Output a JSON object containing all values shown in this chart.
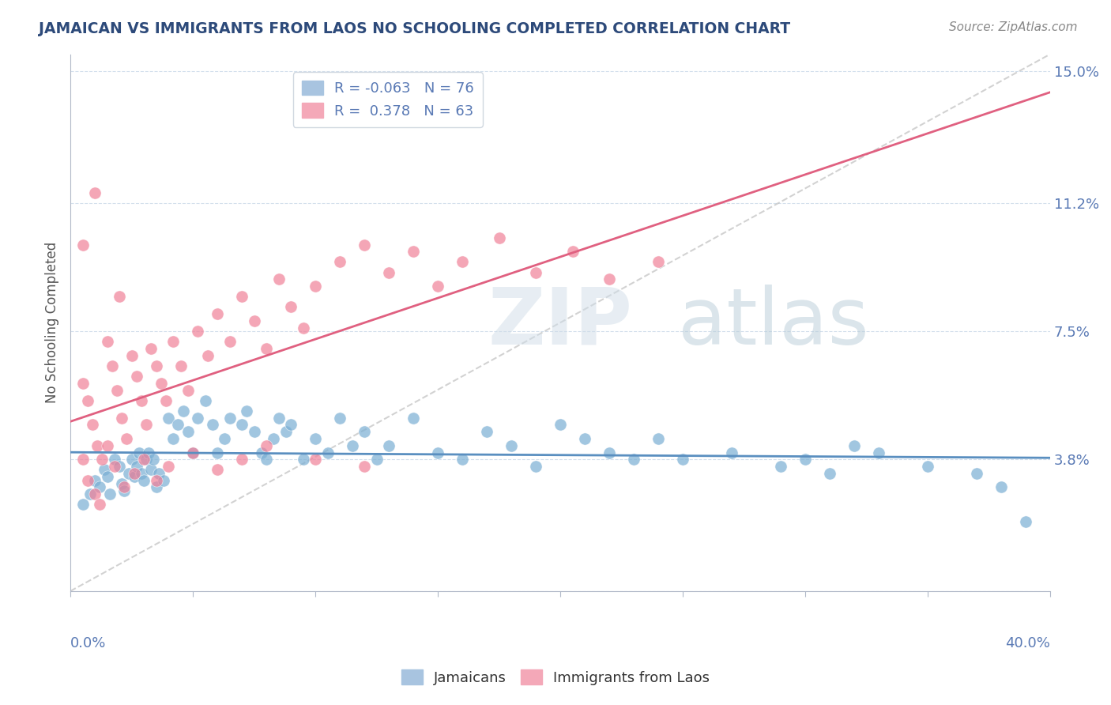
{
  "title": "JAMAICAN VS IMMIGRANTS FROM LAOS NO SCHOOLING COMPLETED CORRELATION CHART",
  "source": "Source: ZipAtlas.com",
  "ylabel": "No Schooling Completed",
  "yticks": [
    0.0,
    0.038,
    0.075,
    0.112,
    0.15
  ],
  "ytick_labels": [
    "",
    "3.8%",
    "7.5%",
    "11.2%",
    "15.0%"
  ],
  "xlim": [
    0.0,
    0.4
  ],
  "ylim": [
    0.0,
    0.155
  ],
  "title_color": "#2d4a7a",
  "axis_color": "#5a7ab5",
  "tick_color": "#5a7ab5",
  "blue_scatter_color": "#7aafd4",
  "pink_scatter_color": "#f08098",
  "blue_line_color": "#5a8fc0",
  "pink_line_color": "#e06080",
  "ref_line_color": "#c0c0c0",
  "background_color": "#ffffff",
  "jamaicans_x": [
    0.005,
    0.008,
    0.01,
    0.012,
    0.014,
    0.015,
    0.016,
    0.018,
    0.02,
    0.021,
    0.022,
    0.024,
    0.025,
    0.026,
    0.027,
    0.028,
    0.029,
    0.03,
    0.031,
    0.032,
    0.033,
    0.034,
    0.035,
    0.036,
    0.038,
    0.04,
    0.042,
    0.044,
    0.046,
    0.048,
    0.05,
    0.052,
    0.055,
    0.058,
    0.06,
    0.063,
    0.065,
    0.07,
    0.072,
    0.075,
    0.078,
    0.08,
    0.083,
    0.085,
    0.088,
    0.09,
    0.095,
    0.1,
    0.105,
    0.11,
    0.115,
    0.12,
    0.125,
    0.13,
    0.14,
    0.15,
    0.16,
    0.17,
    0.18,
    0.19,
    0.2,
    0.21,
    0.22,
    0.23,
    0.24,
    0.25,
    0.27,
    0.29,
    0.3,
    0.31,
    0.32,
    0.33,
    0.35,
    0.37,
    0.38,
    0.39
  ],
  "jamaicans_y": [
    0.025,
    0.028,
    0.032,
    0.03,
    0.035,
    0.033,
    0.028,
    0.038,
    0.036,
    0.031,
    0.029,
    0.034,
    0.038,
    0.033,
    0.036,
    0.04,
    0.034,
    0.032,
    0.038,
    0.04,
    0.035,
    0.038,
    0.03,
    0.034,
    0.032,
    0.05,
    0.044,
    0.048,
    0.052,
    0.046,
    0.04,
    0.05,
    0.055,
    0.048,
    0.04,
    0.044,
    0.05,
    0.048,
    0.052,
    0.046,
    0.04,
    0.038,
    0.044,
    0.05,
    0.046,
    0.048,
    0.038,
    0.044,
    0.04,
    0.05,
    0.042,
    0.046,
    0.038,
    0.042,
    0.05,
    0.04,
    0.038,
    0.046,
    0.042,
    0.036,
    0.048,
    0.044,
    0.04,
    0.038,
    0.044,
    0.038,
    0.04,
    0.036,
    0.038,
    0.034,
    0.042,
    0.04,
    0.036,
    0.034,
    0.03,
    0.02
  ],
  "laos_x": [
    0.005,
    0.007,
    0.009,
    0.011,
    0.013,
    0.015,
    0.017,
    0.019,
    0.021,
    0.023,
    0.025,
    0.027,
    0.029,
    0.031,
    0.033,
    0.035,
    0.037,
    0.039,
    0.042,
    0.045,
    0.048,
    0.052,
    0.056,
    0.06,
    0.065,
    0.07,
    0.075,
    0.08,
    0.085,
    0.09,
    0.095,
    0.1,
    0.11,
    0.12,
    0.13,
    0.14,
    0.15,
    0.16,
    0.175,
    0.19,
    0.205,
    0.22,
    0.24,
    0.005,
    0.007,
    0.01,
    0.012,
    0.015,
    0.018,
    0.022,
    0.026,
    0.03,
    0.035,
    0.04,
    0.05,
    0.06,
    0.07,
    0.08,
    0.1,
    0.12,
    0.005,
    0.01,
    0.02
  ],
  "laos_y": [
    0.06,
    0.055,
    0.048,
    0.042,
    0.038,
    0.072,
    0.065,
    0.058,
    0.05,
    0.044,
    0.068,
    0.062,
    0.055,
    0.048,
    0.07,
    0.065,
    0.06,
    0.055,
    0.072,
    0.065,
    0.058,
    0.075,
    0.068,
    0.08,
    0.072,
    0.085,
    0.078,
    0.07,
    0.09,
    0.082,
    0.076,
    0.088,
    0.095,
    0.1,
    0.092,
    0.098,
    0.088,
    0.095,
    0.102,
    0.092,
    0.098,
    0.09,
    0.095,
    0.038,
    0.032,
    0.028,
    0.025,
    0.042,
    0.036,
    0.03,
    0.034,
    0.038,
    0.032,
    0.036,
    0.04,
    0.035,
    0.038,
    0.042,
    0.038,
    0.036,
    0.1,
    0.115,
    0.085
  ]
}
